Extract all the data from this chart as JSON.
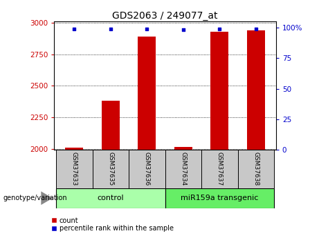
{
  "title": "GDS2063 / 249077_at",
  "samples": [
    "GSM37633",
    "GSM37635",
    "GSM37636",
    "GSM37634",
    "GSM37637",
    "GSM37638"
  ],
  "counts": [
    2010,
    2380,
    2890,
    2015,
    2930,
    2940
  ],
  "percentile_ranks": [
    99,
    99,
    99,
    98,
    99,
    99
  ],
  "ylim_left": [
    1990,
    3010
  ],
  "ylim_right": [
    0,
    105
  ],
  "yticks_left": [
    2000,
    2250,
    2500,
    2750,
    3000
  ],
  "yticks_right": [
    0,
    25,
    50,
    75,
    100
  ],
  "bar_color": "#cc0000",
  "dot_color": "#0000cc",
  "bar_width": 0.5,
  "groups": [
    {
      "label": "control",
      "indices": [
        0,
        1,
        2
      ],
      "color": "#aaffaa"
    },
    {
      "label": "miR159a transgenic",
      "indices": [
        3,
        4,
        5
      ],
      "color": "#66ee66"
    }
  ],
  "group_label": "genotype/variation",
  "legend_count_label": "count",
  "legend_pct_label": "percentile rank within the sample",
  "left_tick_color": "#cc0000",
  "right_tick_color": "#0000cc",
  "grid_color": "#000000",
  "background_color": "#ffffff"
}
